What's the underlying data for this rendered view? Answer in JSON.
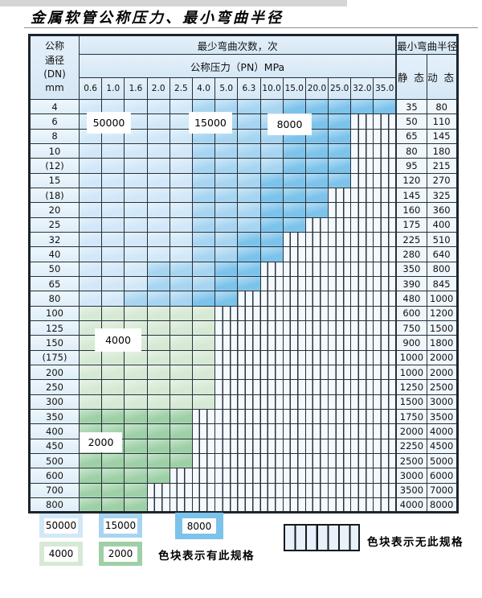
{
  "title": "金属软管公称压力、最小弯曲半径",
  "colors": {
    "c50000": "#d2e8f8",
    "c15000": "#a7d5f1",
    "c8000": "#7cc3eb",
    "c4000": "#d6e9d4",
    "c2000": "#9ed0a6",
    "header_bg": "#dcebf7",
    "hatch_bg": "#f4f9fd",
    "grid": "#26303a"
  },
  "table": {
    "header": {
      "dn_line1": "公称",
      "dn_line2": "通径",
      "dn_line3": "(DN)",
      "dn_line4": "mm",
      "bend_cycles": "最少弯曲次数，次",
      "pressure": "公称压力（PN）MPa",
      "min_bend_radius": "最小弯曲半径",
      "static": "静 态",
      "dynamic": "动 态",
      "pressure_columns": [
        "0.6",
        "1.0",
        "1.6",
        "2.0",
        "2.5",
        "4.0",
        "5.0",
        "6.3",
        "10.0",
        "15.0",
        "20.0",
        "25.0",
        "32.0",
        "35.0"
      ]
    },
    "cell_legend_key": "A=50000次 B=15000次 C=8000次 G=4000次 H=2000次 X=无此规格",
    "rows": [
      {
        "dn": "4",
        "cells": "AAAAABBBBCCCCC",
        "static": "35",
        "dynamic": "80"
      },
      {
        "dn": "6",
        "cells": "AAAAABBBBCCCXX",
        "static": "50",
        "dynamic": "110"
      },
      {
        "dn": "8",
        "cells": "AAAAABBBBCCCXX",
        "static": "65",
        "dynamic": "145"
      },
      {
        "dn": "10",
        "cells": "AAAAABBBBCCCXX",
        "static": "80",
        "dynamic": "180"
      },
      {
        "dn": "(12)",
        "cells": "AAAAABBBBCCCXX",
        "static": "95",
        "dynamic": "215"
      },
      {
        "dn": "15",
        "cells": "AAAAABBBCCCCXX",
        "static": "120",
        "dynamic": "270"
      },
      {
        "dn": "(18)",
        "cells": "AAAAABBBCCCXXX",
        "static": "145",
        "dynamic": "325"
      },
      {
        "dn": "20",
        "cells": "AAAAABBBCCCXXX",
        "static": "160",
        "dynamic": "360"
      },
      {
        "dn": "25",
        "cells": "AAAAABBBCCXXXX",
        "static": "175",
        "dynamic": "400"
      },
      {
        "dn": "32",
        "cells": "AAAAABBCCXXXXX",
        "static": "225",
        "dynamic": "510"
      },
      {
        "dn": "40",
        "cells": "AAAAABBCCXXXXX",
        "static": "280",
        "dynamic": "640"
      },
      {
        "dn": "50",
        "cells": "AAABBBCCXXXXXX",
        "static": "350",
        "dynamic": "800"
      },
      {
        "dn": "65",
        "cells": "AAABBBCCXXXXXX",
        "static": "390",
        "dynamic": "845"
      },
      {
        "dn": "80",
        "cells": "AABBBCCXXXXXXX",
        "static": "480",
        "dynamic": "1000"
      },
      {
        "dn": "100",
        "cells": "GGGGGGXXXXXXXX",
        "static": "600",
        "dynamic": "1200"
      },
      {
        "dn": "125",
        "cells": "GGGGGGXXXXXXXX",
        "static": "750",
        "dynamic": "1500"
      },
      {
        "dn": "150",
        "cells": "GGGGGGXXXXXXXX",
        "static": "900",
        "dynamic": "1800"
      },
      {
        "dn": "(175)",
        "cells": "GGGGGGXXXXXXXX",
        "static": "1000",
        "dynamic": "2000"
      },
      {
        "dn": "200",
        "cells": "GGGGGGXXXXXXXX",
        "static": "1000",
        "dynamic": "2000"
      },
      {
        "dn": "250",
        "cells": "GGGGGGXXXXXXXX",
        "static": "1250",
        "dynamic": "2500"
      },
      {
        "dn": "300",
        "cells": "GGGGGGXXXXXXXX",
        "static": "1500",
        "dynamic": "3000"
      },
      {
        "dn": "350",
        "cells": "HHHHHXXXXXXXXX",
        "static": "1750",
        "dynamic": "3500"
      },
      {
        "dn": "400",
        "cells": "HHHHHXXXXXXXXX",
        "static": "2000",
        "dynamic": "4000"
      },
      {
        "dn": "450",
        "cells": "HHHHHXXXXXXXXX",
        "static": "2250",
        "dynamic": "4500"
      },
      {
        "dn": "500",
        "cells": "HHHHHXXXXXXXXX",
        "static": "2500",
        "dynamic": "5000"
      },
      {
        "dn": "600",
        "cells": "HHHHXXXXXXXXXX",
        "static": "3000",
        "dynamic": "6000"
      },
      {
        "dn": "700",
        "cells": "HHHXXXXXXXXXXX",
        "static": "3500",
        "dynamic": "7000"
      },
      {
        "dn": "800",
        "cells": "HHHXXXXXXXXXXX",
        "static": "4000",
        "dynamic": "8000"
      }
    ]
  },
  "cycle_labels": {
    "l50000": "50000",
    "l15000": "15000",
    "l8000": "8000",
    "l4000": "4000",
    "l2000": "2000"
  },
  "legend": {
    "blocks": [
      {
        "label": "50000"
      },
      {
        "label": "15000"
      },
      {
        "label": "8000"
      },
      {
        "label": "4000"
      },
      {
        "label": "2000"
      }
    ],
    "has_spec_text": "色块表示有此规格",
    "no_spec_text": "色块表示无此规格"
  }
}
